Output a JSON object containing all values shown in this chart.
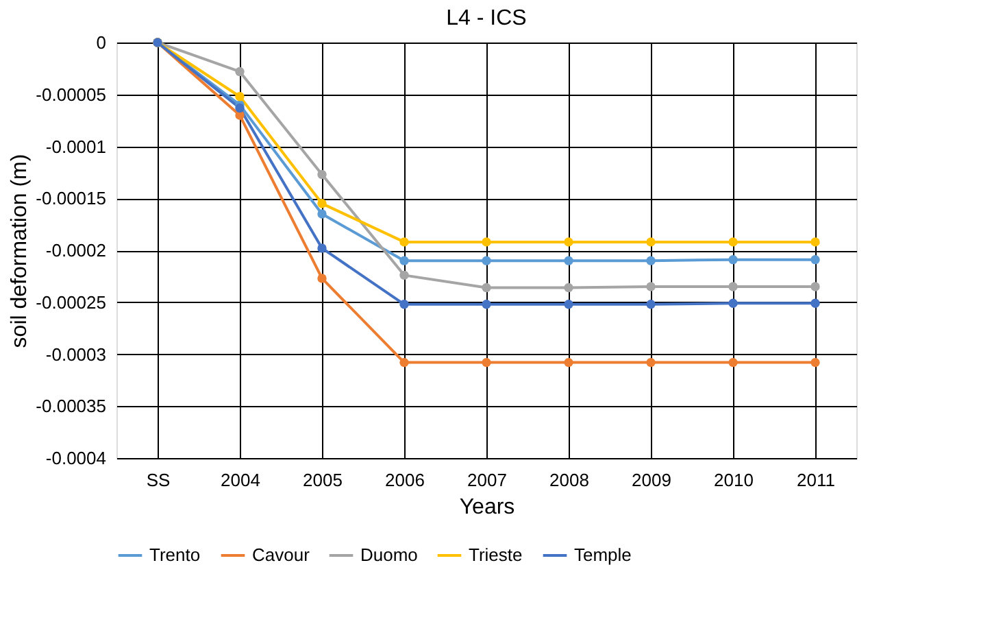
{
  "chart_data": {
    "type": "line",
    "title": "L4 - ICS",
    "xlabel": "Years",
    "ylabel": "soil deformation (m)",
    "categories": [
      "SS",
      "2004",
      "2005",
      "2006",
      "2007",
      "2008",
      "2009",
      "2010",
      "2011"
    ],
    "series": [
      {
        "name": "Trento",
        "color": "#5b9bd5",
        "values": [
          0,
          -6e-05,
          -0.000165,
          -0.00021,
          -0.00021,
          -0.00021,
          -0.00021,
          -0.000209,
          -0.000209
        ]
      },
      {
        "name": "Cavour",
        "color": "#ed7d31",
        "values": [
          0,
          -7e-05,
          -0.000227,
          -0.000308,
          -0.000308,
          -0.000308,
          -0.000308,
          -0.000308,
          -0.000308
        ]
      },
      {
        "name": "Duomo",
        "color": "#a5a5a5",
        "values": [
          0,
          -2.8e-05,
          -0.000127,
          -0.000224,
          -0.000236,
          -0.000236,
          -0.000235,
          -0.000235,
          -0.000235
        ]
      },
      {
        "name": "Trieste",
        "color": "#ffc000",
        "values": [
          0,
          -5.2e-05,
          -0.000155,
          -0.000192,
          -0.000192,
          -0.000192,
          -0.000192,
          -0.000192,
          -0.000192
        ]
      },
      {
        "name": "Temple",
        "color": "#4472c4",
        "values": [
          0,
          -6.3e-05,
          -0.000198,
          -0.000252,
          -0.000252,
          -0.000252,
          -0.000252,
          -0.000251,
          -0.000251
        ]
      }
    ],
    "ylim": [
      -0.0004,
      0
    ],
    "yticks": [
      0,
      {
        "value": -5e-05,
        "label": "-0.00005"
      },
      -0.0001,
      -0.00015,
      -0.0002,
      -0.00025,
      -0.0003,
      -0.00035,
      -0.0004
    ],
    "grid": true,
    "legend": "bottom",
    "marker": "circle",
    "line_style": "solid"
  }
}
